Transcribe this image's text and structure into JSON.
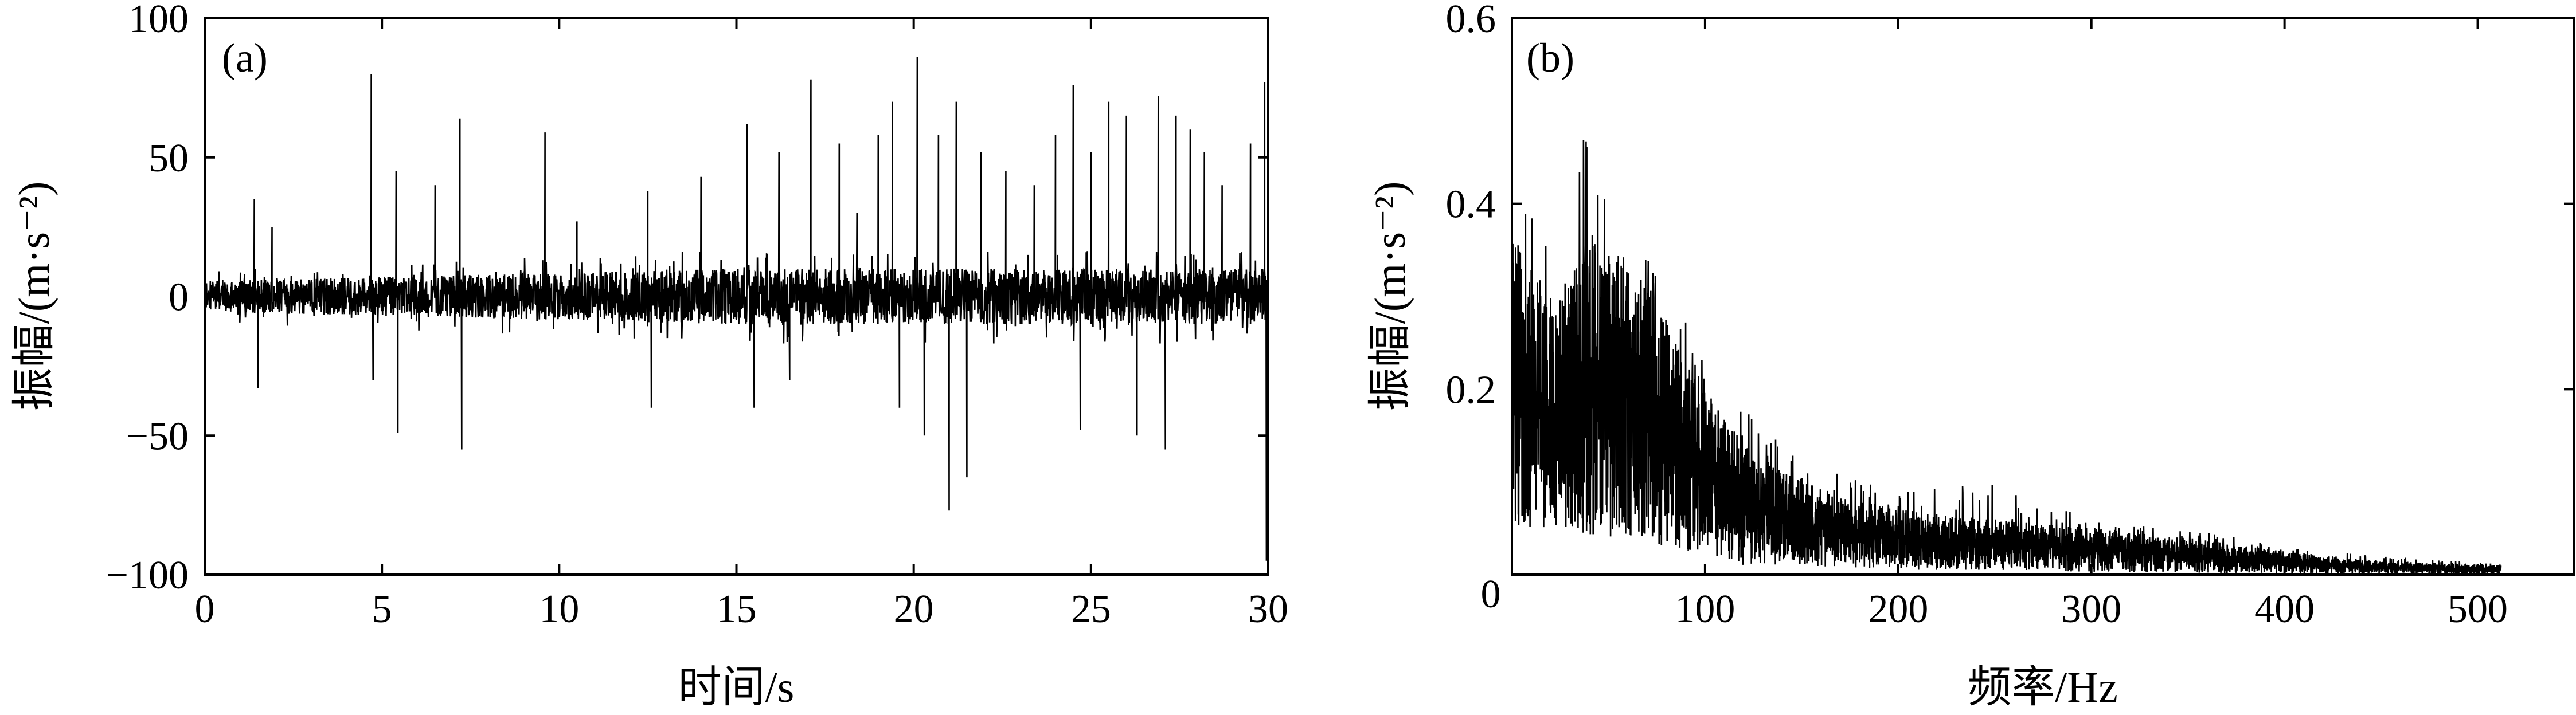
{
  "chart_data": [
    {
      "panel": "(a)",
      "type": "line",
      "xlabel": "时间/s",
      "ylabel": "振幅/(m·s⁻²)",
      "xlim": [
        0,
        30
      ],
      "ylim": [
        -100,
        100
      ],
      "xticks": [
        0,
        5,
        10,
        15,
        20,
        25,
        30
      ],
      "yticks": [
        -100,
        -50,
        0,
        50,
        100
      ],
      "xtick_labels": [
        "0",
        "5",
        "10",
        "15",
        "20",
        "25",
        "30"
      ],
      "ytick_labels": [
        "−100",
        "−50",
        "0",
        "50",
        "100"
      ],
      "grid": false,
      "line_color": "#000000",
      "series": [
        {
          "description_x": "time (s)",
          "baseline_noise_amplitude": 10,
          "spikes": [
            {
              "x": 1.4,
              "y": 35
            },
            {
              "x": 1.5,
              "y": -33
            },
            {
              "x": 1.9,
              "y": 25
            },
            {
              "x": 4.7,
              "y": 80
            },
            {
              "x": 4.75,
              "y": -30
            },
            {
              "x": 5.4,
              "y": 45
            },
            {
              "x": 5.45,
              "y": -49
            },
            {
              "x": 6.5,
              "y": 40
            },
            {
              "x": 7.2,
              "y": 64
            },
            {
              "x": 7.25,
              "y": -55
            },
            {
              "x": 9.6,
              "y": 59
            },
            {
              "x": 10.5,
              "y": 27
            },
            {
              "x": 12.5,
              "y": 38
            },
            {
              "x": 12.6,
              "y": -40
            },
            {
              "x": 14.0,
              "y": 43
            },
            {
              "x": 15.3,
              "y": 62
            },
            {
              "x": 15.5,
              "y": -40
            },
            {
              "x": 16.2,
              "y": 52
            },
            {
              "x": 16.5,
              "y": -30
            },
            {
              "x": 17.1,
              "y": 78
            },
            {
              "x": 17.9,
              "y": 55
            },
            {
              "x": 18.4,
              "y": 30
            },
            {
              "x": 19.0,
              "y": 58
            },
            {
              "x": 19.4,
              "y": 70
            },
            {
              "x": 19.6,
              "y": -40
            },
            {
              "x": 20.1,
              "y": 86
            },
            {
              "x": 20.3,
              "y": -50
            },
            {
              "x": 20.7,
              "y": 58
            },
            {
              "x": 21.0,
              "y": -77
            },
            {
              "x": 21.2,
              "y": 70
            },
            {
              "x": 21.5,
              "y": -65
            },
            {
              "x": 21.9,
              "y": 52
            },
            {
              "x": 22.6,
              "y": 45
            },
            {
              "x": 23.4,
              "y": 40
            },
            {
              "x": 24.0,
              "y": 58
            },
            {
              "x": 24.5,
              "y": 76
            },
            {
              "x": 24.7,
              "y": -48
            },
            {
              "x": 25.0,
              "y": 52
            },
            {
              "x": 25.5,
              "y": 70
            },
            {
              "x": 26.0,
              "y": 65
            },
            {
              "x": 26.3,
              "y": -50
            },
            {
              "x": 26.9,
              "y": 72
            },
            {
              "x": 27.1,
              "y": -55
            },
            {
              "x": 27.4,
              "y": 65
            },
            {
              "x": 27.8,
              "y": 60
            },
            {
              "x": 28.2,
              "y": 52
            },
            {
              "x": 28.7,
              "y": 40
            },
            {
              "x": 29.5,
              "y": 55
            },
            {
              "x": 29.9,
              "y": 77
            },
            {
              "x": 29.95,
              "y": -95
            }
          ]
        }
      ]
    },
    {
      "panel": "(b)",
      "type": "line",
      "xlabel": "频率/Hz",
      "ylabel": "振幅/(m·s⁻²)",
      "xlim": [
        0,
        550
      ],
      "ylim": [
        0,
        0.6
      ],
      "xticks": [
        100,
        200,
        300,
        400,
        500
      ],
      "yticks": [
        0.2,
        0.4,
        0.6
      ],
      "xtick_labels": [
        "100",
        "200",
        "300",
        "400",
        "500"
      ],
      "ytick_labels": [
        "0.2",
        "0.4",
        "0.6"
      ],
      "origin_label": "0",
      "grid": false,
      "line_color": "#000000",
      "series": [
        {
          "description_x": "frequency (Hz)",
          "x_range": [
            0,
            512
          ],
          "envelope": [
            {
              "x": 0,
              "upper": 0.37,
              "lower": 0.05,
              "peak": 0.43
            },
            {
              "x": 20,
              "upper": 0.3,
              "lower": 0.05,
              "peak": 0.36
            },
            {
              "x": 40,
              "upper": 0.36,
              "lower": 0.04,
              "peak": 0.52
            },
            {
              "x": 60,
              "upper": 0.34,
              "lower": 0.04,
              "peak": 0.4
            },
            {
              "x": 80,
              "upper": 0.28,
              "lower": 0.03,
              "peak": 0.33
            },
            {
              "x": 100,
              "upper": 0.2,
              "lower": 0.02,
              "peak": 0.24
            },
            {
              "x": 120,
              "upper": 0.14,
              "lower": 0.01,
              "peak": 0.18
            },
            {
              "x": 150,
              "upper": 0.1,
              "lower": 0.01,
              "peak": 0.12
            },
            {
              "x": 200,
              "upper": 0.07,
              "lower": 0.005,
              "peak": 0.09
            },
            {
              "x": 250,
              "upper": 0.06,
              "lower": 0.005,
              "peak": 0.1
            },
            {
              "x": 300,
              "upper": 0.05,
              "lower": 0.003,
              "peak": 0.06
            },
            {
              "x": 350,
              "upper": 0.04,
              "lower": 0.002,
              "peak": 0.05
            },
            {
              "x": 400,
              "upper": 0.025,
              "lower": 0.001,
              "peak": 0.03
            },
            {
              "x": 450,
              "upper": 0.015,
              "lower": 0.001,
              "peak": 0.02
            },
            {
              "x": 512,
              "upper": 0.01,
              "lower": 0.0,
              "peak": 0.012
            }
          ]
        }
      ]
    }
  ]
}
